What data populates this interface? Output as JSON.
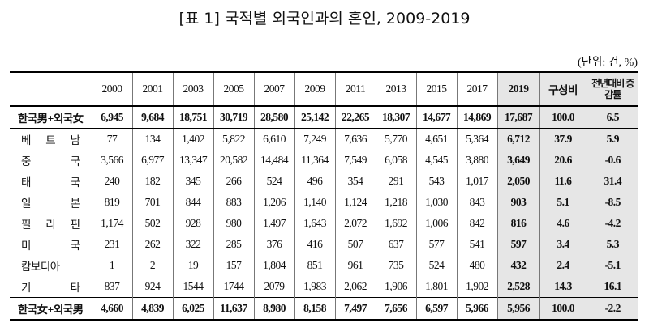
{
  "title": "[표 1] 국적별 외국인과의 혼인, 2009-2019",
  "unit": "(단위: 건, %)",
  "table": {
    "header": [
      "2000",
      "2001",
      "2003",
      "2005",
      "2007",
      "2009",
      "2011",
      "2013",
      "2015",
      "2017",
      "2019",
      "구성비",
      "전년대비 증감률"
    ],
    "rows": [
      [
        "한국男+외국女",
        "6,945",
        "9,684",
        "18,751",
        "30,719",
        "28,580",
        "25,142",
        "22,265",
        "18,307",
        "14,677",
        "14,869",
        "17,687",
        "100.0",
        "6.5"
      ],
      [
        "베 트 남",
        "77",
        "134",
        "1,402",
        "5,822",
        "6,610",
        "7,249",
        "7,636",
        "5,770",
        "4,651",
        "5,364",
        "6,712",
        "37.9",
        "5.9"
      ],
      [
        "중 국",
        "3,566",
        "6,977",
        "13,347",
        "20,582",
        "14,484",
        "11,364",
        "7,549",
        "6,058",
        "4,545",
        "3,880",
        "3,649",
        "20.6",
        "-0.6"
      ],
      [
        "태 국",
        "240",
        "182",
        "345",
        "266",
        "524",
        "496",
        "354",
        "291",
        "543",
        "1,017",
        "2,050",
        "11.6",
        "31.4"
      ],
      [
        "일 본",
        "819",
        "701",
        "844",
        "883",
        "1,206",
        "1,140",
        "1,124",
        "1,218",
        "1,030",
        "843",
        "903",
        "5.1",
        "-8.5"
      ],
      [
        "필 리 핀",
        "1,174",
        "502",
        "928",
        "980",
        "1,497",
        "1,643",
        "2,072",
        "1,692",
        "1,006",
        "842",
        "816",
        "4.6",
        "-4.2"
      ],
      [
        "미 국",
        "231",
        "262",
        "322",
        "285",
        "376",
        "416",
        "507",
        "637",
        "577",
        "541",
        "597",
        "3.4",
        "5.3"
      ],
      [
        "캄보디아",
        "1",
        "2",
        "19",
        "157",
        "1,804",
        "851",
        "961",
        "735",
        "524",
        "480",
        "432",
        "2.4",
        "-5.1"
      ],
      [
        "기 타",
        "837",
        "924",
        "1544",
        "1744",
        "2079",
        "1,983",
        "2,062",
        "1,906",
        "1,801",
        "1,902",
        "2,528",
        "14.3",
        "16.1"
      ],
      [
        "한국女+외국男",
        "4,660",
        "4,839",
        "6,025",
        "11,637",
        "8,980",
        "8,158",
        "7,497",
        "7,656",
        "6,597",
        "5,966",
        "5,956",
        "100.0",
        "-2.2"
      ]
    ]
  }
}
